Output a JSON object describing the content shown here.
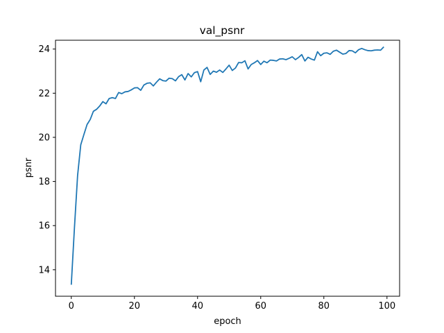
{
  "chart_data": {
    "type": "line",
    "title": "val_psnr",
    "xlabel": "epoch",
    "ylabel": "psnr",
    "xlim": [
      -5,
      104
    ],
    "ylim": [
      12.8,
      24.4
    ],
    "xticks": [
      0,
      20,
      40,
      60,
      80,
      100
    ],
    "yticks": [
      14,
      16,
      18,
      20,
      22,
      24
    ],
    "grid": false,
    "color": "#1f77b4",
    "series": [
      {
        "x": [
          0,
          1,
          2,
          3,
          4,
          5,
          6,
          7,
          8,
          9,
          10,
          11,
          12,
          13,
          14,
          15,
          16,
          17,
          18,
          19,
          20,
          21,
          22,
          23,
          24,
          25,
          26,
          27,
          28,
          29,
          30,
          31,
          32,
          33,
          34,
          35,
          36,
          37,
          38,
          39,
          40,
          41,
          42,
          43,
          44,
          45,
          46,
          47,
          48,
          49,
          50,
          51,
          52,
          53,
          54,
          55,
          56,
          57,
          58,
          59,
          60,
          61,
          62,
          63,
          64,
          65,
          66,
          67,
          68,
          69,
          70,
          71,
          72,
          73,
          74,
          75,
          76,
          77,
          78,
          79,
          80,
          81,
          82,
          83,
          84,
          85,
          86,
          87,
          88,
          89,
          90,
          91,
          92,
          93,
          94,
          95,
          96,
          97,
          98,
          99
        ],
        "values": [
          13.32,
          15.9,
          18.27,
          19.66,
          20.13,
          20.58,
          20.81,
          21.18,
          21.27,
          21.42,
          21.62,
          21.52,
          21.76,
          21.8,
          21.76,
          22.03,
          21.98,
          22.06,
          22.08,
          22.15,
          22.24,
          22.25,
          22.13,
          22.37,
          22.45,
          22.47,
          22.33,
          22.5,
          22.65,
          22.57,
          22.55,
          22.68,
          22.66,
          22.56,
          22.75,
          22.84,
          22.6,
          22.89,
          22.74,
          22.93,
          22.98,
          22.52,
          23.05,
          23.17,
          22.85,
          23.0,
          22.95,
          23.05,
          22.94,
          23.1,
          23.27,
          23.03,
          23.14,
          23.39,
          23.38,
          23.47,
          23.1,
          23.3,
          23.38,
          23.48,
          23.3,
          23.45,
          23.38,
          23.5,
          23.49,
          23.46,
          23.55,
          23.56,
          23.52,
          23.58,
          23.65,
          23.52,
          23.62,
          23.75,
          23.46,
          23.63,
          23.55,
          23.5,
          23.88,
          23.7,
          23.81,
          23.83,
          23.76,
          23.9,
          23.95,
          23.86,
          23.77,
          23.8,
          23.93,
          23.92,
          23.83,
          23.97,
          24.03,
          23.97,
          23.93,
          23.92,
          23.95,
          23.96,
          23.95,
          24.1
        ]
      }
    ]
  }
}
